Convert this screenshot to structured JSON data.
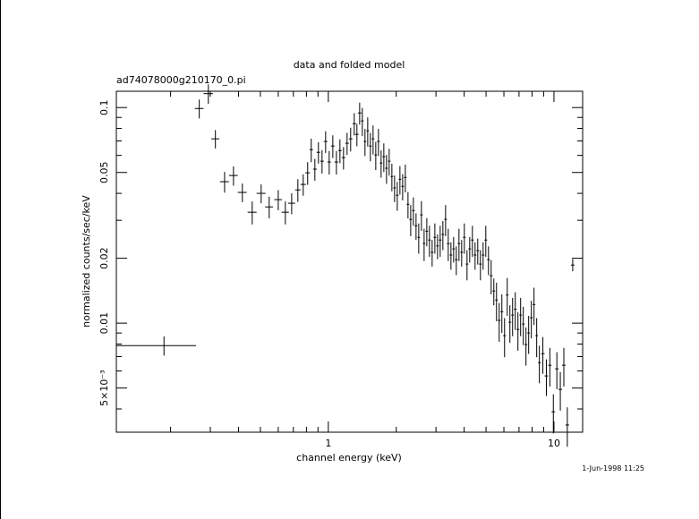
{
  "chart_data": {
    "type": "errorbar-scatter",
    "title": "data and folded model",
    "subtitle": "ad74078000g210170_0.pi",
    "xlabel": "channel energy (keV)",
    "ylabel": "normalized counts/sec/keV",
    "timestamp": "1-Jun-1998 11:25",
    "xlog": true,
    "ylog": true,
    "color": "#000000",
    "xlim": [
      0.115,
      13.4
    ],
    "ylim": [
      0.00312,
      0.119
    ],
    "xticks": [
      1,
      10
    ],
    "xminorticks": [
      0.2,
      0.3,
      0.4,
      0.5,
      0.6,
      0.7,
      0.8,
      0.9,
      2,
      3,
      4,
      5,
      6,
      7,
      8,
      9
    ],
    "yticks": [
      {
        "value": 0.005,
        "label": "5×10⁻³"
      },
      0.01,
      0.02,
      0.05,
      0.1
    ],
    "yminorticks": [
      0.004,
      0.006,
      0.007,
      0.008,
      0.009,
      0.03,
      0.04,
      0.06,
      0.07,
      0.08,
      0.09
    ],
    "x": [
      0.187,
      0.268,
      0.294,
      0.316,
      0.347,
      0.38,
      0.416,
      0.46,
      0.504,
      0.547,
      0.6,
      0.645,
      0.688,
      0.733,
      0.774,
      0.81,
      0.84,
      0.872,
      0.904,
      0.938,
      0.973,
      1.009,
      1.047,
      1.086,
      1.126,
      1.168,
      1.211,
      1.256,
      1.303,
      1.339,
      1.377,
      1.415,
      1.454,
      1.495,
      1.536,
      1.579,
      1.623,
      1.668,
      1.714,
      1.762,
      1.811,
      1.861,
      1.913,
      1.966,
      2.021,
      2.077,
      2.135,
      2.194,
      2.255,
      2.318,
      2.382,
      2.448,
      2.516,
      2.586,
      2.658,
      2.732,
      2.807,
      2.885,
      2.966,
      3.048,
      3.132,
      3.219,
      3.309,
      3.4,
      3.495,
      3.592,
      3.691,
      3.794,
      3.899,
      4.007,
      4.119,
      4.233,
      4.35,
      4.471,
      4.595,
      4.722,
      4.853,
      4.988,
      5.126,
      5.268,
      5.414,
      5.564,
      5.718,
      5.877,
      6.04,
      6.207,
      6.379,
      6.556,
      6.737,
      6.924,
      7.116,
      7.313,
      7.516,
      7.724,
      7.938,
      8.158,
      8.384,
      8.616,
      8.929,
      9.253,
      9.589,
      9.937,
      10.3,
      10.67,
      11.06,
      11.46,
      12.11
    ],
    "xerr": [
      0.072,
      0.012,
      0.014,
      0.013,
      0.016,
      0.017,
      0.019,
      0.021,
      0.023,
      0.022,
      0.024,
      0.024,
      0.025,
      0.02,
      0.021,
      0.019,
      0.015,
      0.016,
      0.016,
      0.017,
      0.018,
      0.018,
      0.019,
      0.02,
      0.02,
      0.021,
      0.022,
      0.023,
      0.023,
      0.024,
      0.025,
      0.019,
      0.02,
      0.02,
      0.021,
      0.022,
      0.022,
      0.023,
      0.023,
      0.024,
      0.025,
      0.025,
      0.026,
      0.027,
      0.028,
      0.028,
      0.029,
      0.03,
      0.031,
      0.032,
      0.033,
      0.034,
      0.034,
      0.035,
      0.036,
      0.037,
      0.038,
      0.04,
      0.041,
      0.042,
      0.043,
      0.044,
      0.045,
      0.047,
      0.048,
      0.049,
      0.051,
      0.052,
      0.053,
      0.055,
      0.056,
      0.058,
      0.06,
      0.061,
      0.063,
      0.065,
      0.066,
      0.068,
      0.07,
      0.072,
      0.074,
      0.076,
      0.078,
      0.081,
      0.083,
      0.085,
      0.087,
      0.09,
      0.092,
      0.095,
      0.097,
      0.1,
      0.103,
      0.106,
      0.109,
      0.112,
      0.115,
      0.118,
      0.161,
      0.167,
      0.173,
      0.179,
      0.185,
      0.192,
      0.199,
      0.206,
      0.218
    ],
    "y": [
      0.00787,
      0.099,
      0.116,
      0.0716,
      0.0453,
      0.0484,
      0.0404,
      0.0327,
      0.04,
      0.0346,
      0.0374,
      0.0327,
      0.036,
      0.0415,
      0.044,
      0.0498,
      0.0638,
      0.0518,
      0.062,
      0.0564,
      0.0696,
      0.0559,
      0.0663,
      0.0559,
      0.0632,
      0.0586,
      0.0683,
      0.0716,
      0.0842,
      0.0751,
      0.0944,
      0.0867,
      0.0696,
      0.078,
      0.0663,
      0.0716,
      0.0603,
      0.0696,
      0.0553,
      0.0592,
      0.0523,
      0.0564,
      0.0479,
      0.0424,
      0.0392,
      0.0465,
      0.0431,
      0.0474,
      0.0356,
      0.0303,
      0.0333,
      0.0283,
      0.025,
      0.0318,
      0.0234,
      0.0267,
      0.0243,
      0.0213,
      0.025,
      0.0228,
      0.0243,
      0.0258,
      0.0303,
      0.0234,
      0.0207,
      0.0221,
      0.0197,
      0.0234,
      0.0213,
      0.025,
      0.0188,
      0.0221,
      0.0243,
      0.0207,
      0.0217,
      0.0188,
      0.0207,
      0.0243,
      0.0197,
      0.0166,
      0.0141,
      0.0128,
      0.0103,
      0.0113,
      0.00875,
      0.0135,
      0.0101,
      0.0109,
      0.0116,
      0.00935,
      0.0109,
      0.00991,
      0.00795,
      0.009,
      0.0106,
      0.0122,
      0.00875,
      0.00656,
      0.00722,
      0.00569,
      0.00638,
      0.00388,
      0.00614,
      0.00493,
      0.00638,
      0.00337,
      0.0186
    ],
    "yerr": [
      0.0008,
      0.01,
      0.012,
      0.007,
      0.005,
      0.005,
      0.004,
      0.004,
      0.004,
      0.004,
      0.004,
      0.004,
      0.004,
      0.005,
      0.005,
      0.006,
      0.008,
      0.006,
      0.007,
      0.007,
      0.008,
      0.007,
      0.008,
      0.007,
      0.008,
      0.007,
      0.008,
      0.009,
      0.01,
      0.009,
      0.011,
      0.013,
      0.01,
      0.012,
      0.01,
      0.011,
      0.009,
      0.01,
      0.008,
      0.009,
      0.008,
      0.008,
      0.007,
      0.006,
      0.006,
      0.007,
      0.006,
      0.007,
      0.005,
      0.005,
      0.005,
      0.004,
      0.004,
      0.005,
      0.004,
      0.004,
      0.004,
      0.003,
      0.004,
      0.003,
      0.004,
      0.004,
      0.005,
      0.004,
      0.003,
      0.003,
      0.003,
      0.004,
      0.003,
      0.004,
      0.003,
      0.003,
      0.004,
      0.003,
      0.003,
      0.003,
      0.003,
      0.004,
      0.003,
      0.003,
      0.002,
      0.0026,
      0.0021,
      0.0023,
      0.0018,
      0.0027,
      0.002,
      0.0022,
      0.0023,
      0.0019,
      0.0022,
      0.002,
      0.0016,
      0.0018,
      0.0021,
      0.0024,
      0.0018,
      0.0013,
      0.0014,
      0.0011,
      0.0013,
      0.0008,
      0.0012,
      0.001,
      0.0013,
      0.0007,
      0.0012
    ]
  }
}
